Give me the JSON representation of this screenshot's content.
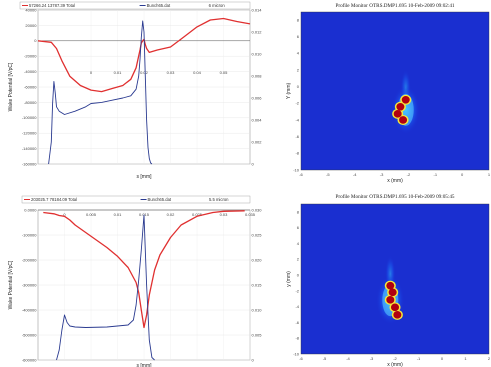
{
  "panels": [
    {
      "legend": [
        {
          "label": "57266.24 13787.39 Total",
          "color": "#e03030"
        },
        {
          "label": "Bunch65.dat",
          "color": "#2a3a90"
        },
        {
          "label": "6 micron",
          "color": "#ffffff"
        }
      ],
      "ylabel": "Wake Potential [V/pC]",
      "xlabel": "s [mm]"
    },
    {
      "title": "Profile Monitor OTRS.DMP1.695 10-Feb-2009 09:02:41",
      "xlabel": "x (mm)",
      "ylabel": "Y (mm)"
    },
    {
      "legend": [
        {
          "label": "203025.7 78184.09 Total",
          "color": "#e03030"
        },
        {
          "label": "Bunch65.dat",
          "color": "#2a3a90"
        },
        {
          "label": "5.5 micron",
          "color": "#ffffff"
        }
      ],
      "ylabel": "Wake Potential [V/pC]",
      "xlabel": "s [mm]"
    },
    {
      "title": "Profile Monitor OTRS.DMP1.695 10-Feb-2009 09:05:45",
      "xlabel": "x (mm)",
      "ylabel": "y (mm)"
    }
  ],
  "chart_data": [
    {
      "type": "line",
      "xlabel": "s [mm]",
      "ylabel": "Wake Potential [V/pC]",
      "xlim": [
        -0.02,
        0.06
      ],
      "ylim": [
        -160000,
        40000
      ],
      "y2lim": [
        0,
        0.014
      ],
      "x_ticks": [
        "0",
        "0.01",
        "0.02",
        "0.03",
        "0.04",
        "0.05"
      ],
      "y_ticks": [
        "40000",
        "20000",
        "0",
        "-20000",
        "-40000",
        "-60000",
        "-80000",
        "-100000",
        "-120000",
        "-140000",
        "-160000"
      ],
      "y2_ticks": [
        "0.014",
        "0.012",
        "0.010",
        "0.008",
        "0.006",
        "0.004",
        "0.002",
        "0"
      ],
      "series": [
        {
          "name": "57266.24 13787.39 Total",
          "axis": "left",
          "color": "#e03030",
          "x": [
            -0.02,
            -0.015,
            -0.013,
            -0.011,
            -0.008,
            -0.004,
            0,
            0.004,
            0.008,
            0.012,
            0.015,
            0.017,
            0.0185,
            0.019,
            0.0195,
            0.02,
            0.0205,
            0.021,
            0.022,
            0.025,
            0.03,
            0.035,
            0.04,
            0.045,
            0.05,
            0.055,
            0.06
          ],
          "y": [
            0,
            -2000,
            -10000,
            -26000,
            -46000,
            -58000,
            -64000,
            -66000,
            -62000,
            -58000,
            -50000,
            -35000,
            -12000,
            -3000,
            0,
            2000,
            -5000,
            -10000,
            -15000,
            -12000,
            -8000,
            5000,
            18000,
            27000,
            29000,
            25000,
            22000
          ]
        },
        {
          "name": "Bunch65.dat",
          "axis": "right",
          "color": "#2a3a90",
          "x": [
            -0.016,
            -0.015,
            -0.0145,
            -0.014,
            -0.0135,
            -0.013,
            -0.012,
            -0.01,
            -0.006,
            -0.002,
            0,
            0.004,
            0.008,
            0.012,
            0.015,
            0.017,
            0.018,
            0.0185,
            0.019,
            0.0195,
            0.02,
            0.0205,
            0.021,
            0.0215,
            0.022,
            0.0225,
            0.023
          ],
          "y": [
            0,
            0.002,
            0.0055,
            0.0075,
            0.0065,
            0.0052,
            0.0048,
            0.0045,
            0.0048,
            0.0052,
            0.0055,
            0.0056,
            0.0058,
            0.006,
            0.0062,
            0.0068,
            0.008,
            0.0095,
            0.0115,
            0.013,
            0.012,
            0.008,
            0.004,
            0.0015,
            0.0005,
            0.0001,
            0
          ]
        }
      ]
    },
    {
      "type": "heatmap",
      "title": "Profile Monitor OTRS.DMP1.695 10-Feb-2009 09:02:41",
      "xlabel": "x (mm)",
      "ylabel": "Y (mm)",
      "xlim": [
        -6,
        1
      ],
      "ylim": [
        -10,
        8
      ],
      "x_ticks": [
        "-6",
        "-5",
        "-4",
        "-3",
        "-2",
        "-1",
        "0",
        "1"
      ],
      "y_ticks": [
        "8",
        "6",
        "4",
        "2",
        "0",
        "-2",
        "-4",
        "-6",
        "-8",
        "-10"
      ],
      "core": [
        {
          "x": -2.1,
          "y": -2.0
        },
        {
          "x": -2.3,
          "y": -2.8
        },
        {
          "x": -2.4,
          "y": -3.6
        },
        {
          "x": -2.2,
          "y": -4.3
        }
      ]
    },
    {
      "type": "line",
      "xlabel": "s [mm]",
      "ylabel": "Wake Potential [V/pC]",
      "xlim": [
        -0.005,
        0.035
      ],
      "ylim": [
        -600000,
        0
      ],
      "y2lim": [
        0,
        0.03
      ],
      "x_ticks": [
        "0",
        "0.005",
        "0.01",
        "0.015",
        "0.02",
        "0.025",
        "0.03",
        "0.035"
      ],
      "y_ticks": [
        "0.0000",
        "-100000",
        "-200000",
        "-300000",
        "-400000",
        "-500000",
        "-600000"
      ],
      "y2_ticks": [
        "0.030",
        "0.025",
        "0.020",
        "0.015",
        "0.010",
        "0.005",
        "0"
      ],
      "series": [
        {
          "name": "203025.7 78184.09 Total",
          "axis": "left",
          "color": "#e03030",
          "x": [
            -0.004,
            -0.002,
            -0.001,
            0,
            0.001,
            0.002,
            0.004,
            0.006,
            0.008,
            0.01,
            0.012,
            0.0135,
            0.014,
            0.0145,
            0.015,
            0.0155,
            0.016,
            0.017,
            0.018,
            0.02,
            0.022,
            0.025,
            0.028,
            0.03,
            0.034
          ],
          "y": [
            -10000,
            -15000,
            -22000,
            -25000,
            -40000,
            -60000,
            -90000,
            -120000,
            -150000,
            -185000,
            -230000,
            -290000,
            -330000,
            -400000,
            -470000,
            -420000,
            -340000,
            -240000,
            -180000,
            -110000,
            -60000,
            -25000,
            -10000,
            -5000,
            -3000
          ]
        },
        {
          "name": "Bunch65.dat",
          "axis": "right",
          "color": "#2a3a90",
          "x": [
            -0.0015,
            -0.001,
            -0.0005,
            0,
            0.0005,
            0.001,
            0.002,
            0.004,
            0.008,
            0.012,
            0.013,
            0.0135,
            0.014,
            0.0145,
            0.015,
            0.0155,
            0.016,
            0.0165,
            0.017
          ],
          "y": [
            0,
            0.002,
            0.006,
            0.009,
            0.0075,
            0.0068,
            0.0066,
            0.0065,
            0.0066,
            0.007,
            0.008,
            0.011,
            0.016,
            0.022,
            0.029,
            0.015,
            0.004,
            0.0005,
            0
          ]
        }
      ]
    },
    {
      "type": "heatmap",
      "title": "Profile Monitor OTRS.DMP1.695 10-Feb-2009 09:05:45",
      "xlabel": "x (mm)",
      "ylabel": "y (mm)",
      "xlim": [
        -6,
        2
      ],
      "ylim": [
        -10,
        8
      ],
      "x_ticks": [
        "-6",
        "-5",
        "-4",
        "-3",
        "-2",
        "-1",
        "0",
        "1",
        "2"
      ],
      "y_ticks": [
        "8",
        "6",
        "4",
        "2",
        "0",
        "-2",
        "-4",
        "-6",
        "-8",
        "-10"
      ],
      "core": [
        {
          "x": -2.2,
          "y": -1.8
        },
        {
          "x": -2.1,
          "y": -2.6
        },
        {
          "x": -2.2,
          "y": -3.5
        },
        {
          "x": -2.0,
          "y": -4.4
        },
        {
          "x": -1.9,
          "y": -5.3
        }
      ]
    }
  ]
}
